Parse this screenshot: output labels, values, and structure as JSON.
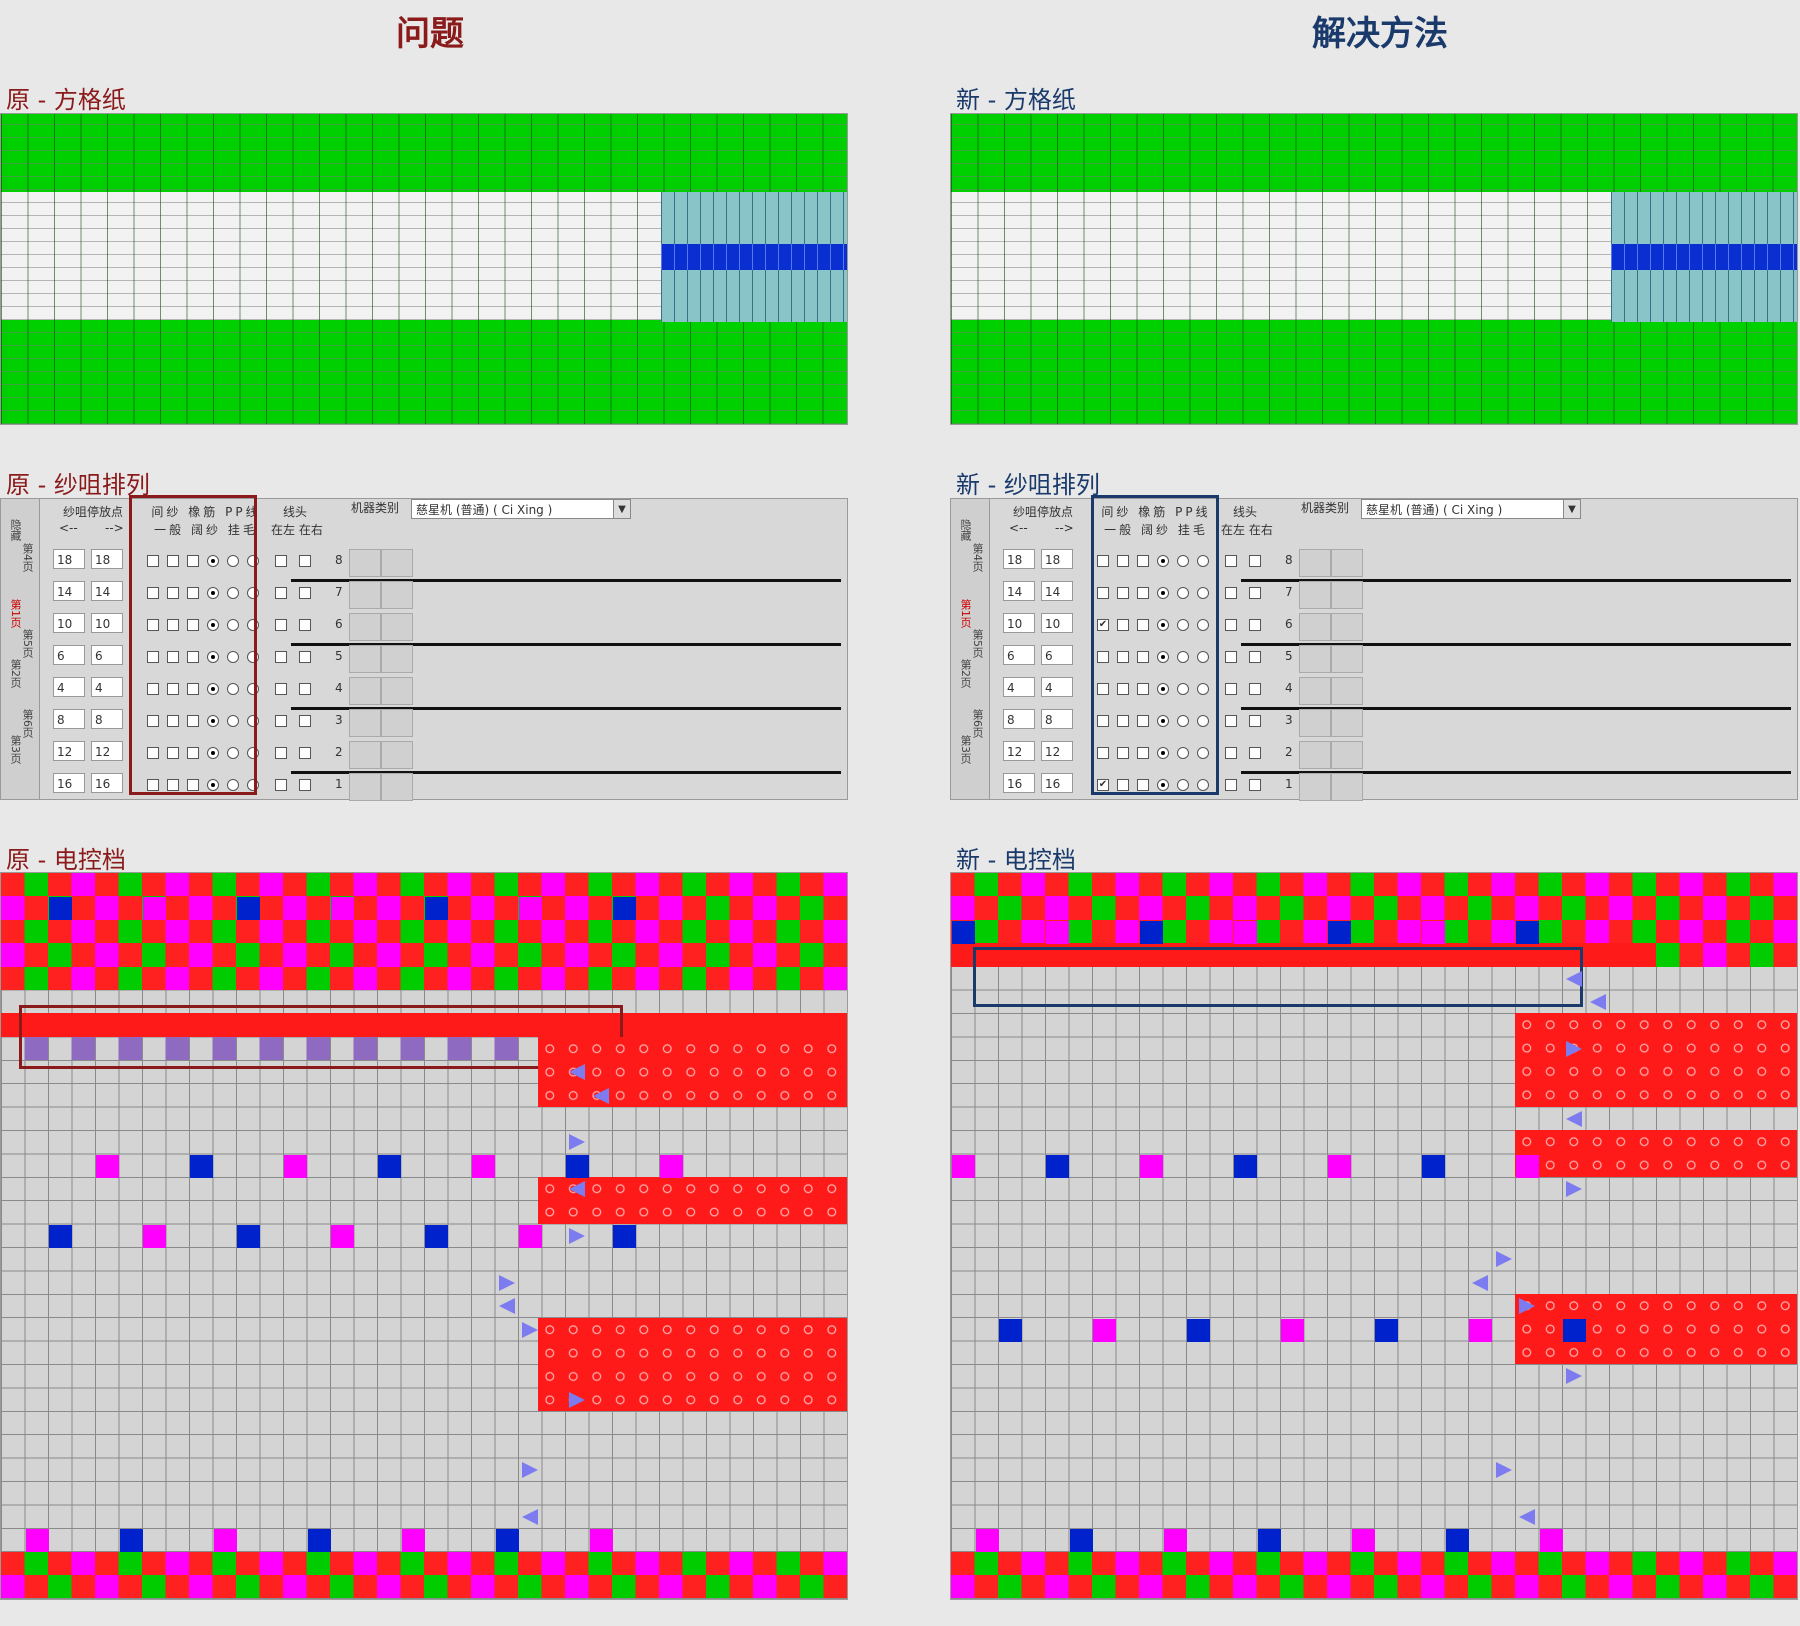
{
  "titles": {
    "left": "问题",
    "right": "解决方法"
  },
  "left": {
    "paper_label": "原 - 方格纸",
    "yarn_label": "原 - 纱咀排列",
    "ctrl_label": "原 - 电控档",
    "accent": "#8b1a1a"
  },
  "right": {
    "paper_label": "新 - 方格纸",
    "yarn_label": "新 - 纱咀排列",
    "ctrl_label": "新 - 电控档",
    "accent": "#1a3a6b"
  },
  "yarn_panel": {
    "tabs": [
      "隐藏",
      "第4页",
      "第1页",
      "第5页",
      "第2页",
      "第6页",
      "第3页"
    ],
    "header_park": "纱咀停放点",
    "header_arrows_left": "<--",
    "header_arrows_right": "-->",
    "header_cols": [
      "间纱",
      "橡筋",
      "PP线",
      "一般",
      "阔纱",
      "挂毛"
    ],
    "header_thread": "线头",
    "header_thread_sub": "在左 在右",
    "machine_label": "机器类别",
    "machine_value": "慈星机 (普通) ( Ci Xing )",
    "rows": [
      {
        "n": "8",
        "a": "18",
        "b": "18"
      },
      {
        "n": "7",
        "a": "14",
        "b": "14"
      },
      {
        "n": "6",
        "a": "10",
        "b": "10"
      },
      {
        "n": "5",
        "a": "6",
        "b": "6"
      },
      {
        "n": "4",
        "a": "4",
        "b": "4"
      },
      {
        "n": "3",
        "a": "8",
        "b": "8"
      },
      {
        "n": "2",
        "a": "12",
        "b": "12"
      },
      {
        "n": "1",
        "a": "16",
        "b": "16"
      }
    ]
  },
  "colors": {
    "green": "#00d000",
    "red": "#ff1a1a",
    "magenta": "#ff00ff",
    "blue": "#0022cc",
    "teal": "#88c4c8",
    "arrow": "#7c7cf0"
  }
}
